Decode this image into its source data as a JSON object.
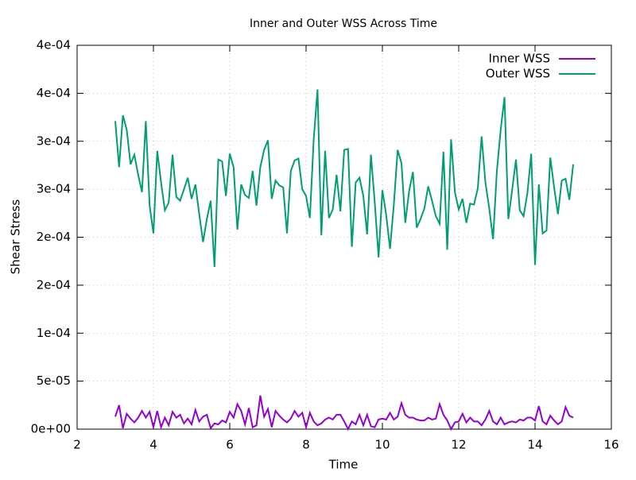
{
  "chart_data": {
    "type": "line",
    "title": "Inner and Outer WSS Across Time",
    "xlabel": "Time",
    "ylabel": "Shear Stress",
    "x": [
      3,
      3.1,
      3.2,
      3.3,
      3.4,
      3.5,
      3.6,
      3.7,
      3.8,
      3.9,
      4,
      4.1,
      4.2,
      4.3,
      4.4,
      4.5,
      4.6,
      4.7,
      4.8,
      4.9,
      5,
      5.1,
      5.2,
      5.3,
      5.4,
      5.5,
      5.6,
      5.7,
      5.8,
      5.9,
      6,
      6.1,
      6.2,
      6.3,
      6.4,
      6.5,
      6.6,
      6.7,
      6.8,
      6.9,
      7,
      7.1,
      7.2,
      7.3,
      7.4,
      7.5,
      7.6,
      7.7,
      7.8,
      7.9,
      8,
      8.1,
      8.2,
      8.3,
      8.4,
      8.5,
      8.6,
      8.7,
      8.8,
      8.9,
      9,
      9.1,
      9.2,
      9.3,
      9.4,
      9.5,
      9.6,
      9.7,
      9.8,
      9.9,
      10,
      10.1,
      10.2,
      10.3,
      10.4,
      10.5,
      10.6,
      10.7,
      10.8,
      10.9,
      11,
      11.1,
      11.2,
      11.3,
      11.4,
      11.5,
      11.6,
      11.7,
      11.8,
      11.9,
      12,
      12.1,
      12.2,
      12.3,
      12.4,
      12.5,
      12.6,
      12.7,
      12.8,
      12.9,
      13,
      13.1,
      13.2,
      13.3,
      13.4,
      13.5,
      13.6,
      13.7,
      13.8,
      13.9,
      14,
      14.1,
      14.2,
      14.3,
      14.4,
      14.5,
      14.6,
      14.7,
      14.8,
      14.9,
      15
    ],
    "series": [
      {
        "name": "Inner WSS",
        "color": "#9400d3",
        "values": [
          1.3e-05,
          2.5e-05,
          1e-06,
          1.6e-05,
          1.1e-05,
          7e-06,
          1.2e-05,
          1.9e-05,
          1.2e-05,
          1.8e-05,
          2e-06,
          1.9e-05,
          2e-06,
          1.2e-05,
          4e-06,
          1.8e-05,
          1.2e-05,
          1.5e-05,
          6e-06,
          1.1e-05,
          5e-06,
          2e-05,
          8e-06,
          1.3e-05,
          1.5e-05,
          1e-06,
          6e-06,
          5e-06,
          9e-06,
          7e-06,
          1.8e-05,
          1.2e-05,
          2.6e-05,
          1.9e-05,
          5e-06,
          2.2e-05,
          2e-06,
          4e-06,
          3.5e-05,
          1.3e-05,
          2.1e-05,
          2e-06,
          1.9e-05,
          1.4e-05,
          1e-05,
          7e-06,
          1.1e-05,
          1.9e-05,
          1.3e-05,
          1.7e-05,
          2e-06,
          1.7e-05,
          8e-06,
          4e-06,
          6e-06,
          1e-05,
          1.2e-05,
          1e-05,
          1.5e-05,
          1.5e-05,
          8e-06,
          0,
          8e-06,
          5e-06,
          1.5e-05,
          4e-06,
          1.5e-05,
          3e-06,
          2e-06,
          1e-05,
          1.1e-05,
          1e-05,
          1.7e-05,
          1e-05,
          1.3e-05,
          2.7e-05,
          1.5e-05,
          1.2e-05,
          1.2e-05,
          1e-05,
          9e-06,
          9e-06,
          1.2e-05,
          1e-05,
          1.1e-05,
          2.6e-05,
          1.5e-05,
          9e-06,
          0,
          7e-06,
          8e-06,
          1.6e-05,
          7e-06,
          1.2e-05,
          8e-06,
          8e-06,
          4e-06,
          1e-05,
          1.9e-05,
          8e-06,
          5e-06,
          1.2e-05,
          5e-06,
          7e-06,
          8e-06,
          7e-06,
          1e-05,
          9e-06,
          1.2e-05,
          1.2e-05,
          9e-06,
          2.4e-05,
          8e-06,
          5e-06,
          1.4e-05,
          9e-06,
          5e-06,
          8e-06,
          2.3e-05,
          1.4e-05,
          1.2e-05
        ]
      },
      {
        "name": "Outer WSS",
        "color": "#009e73",
        "values": [
          0.000321,
          0.000273,
          0.000327,
          0.000312,
          0.000276,
          0.000286,
          0.000265,
          0.000247,
          0.000321,
          0.000233,
          0.000204,
          0.00029,
          0.000257,
          0.000228,
          0.000236,
          0.000286,
          0.000242,
          0.000238,
          0.00025,
          0.000262,
          0.00024,
          0.000255,
          0.000224,
          0.000195,
          0.000219,
          0.000238,
          0.000169,
          0.000281,
          0.000279,
          0.000243,
          0.000287,
          0.000273,
          0.000208,
          0.000255,
          0.000244,
          0.000241,
          0.000269,
          0.000233,
          0.000273,
          0.000291,
          0.000301,
          0.00024,
          0.000259,
          0.000254,
          0.000252,
          0.000204,
          0.000269,
          0.00028,
          0.000282,
          0.00025,
          0.000243,
          0.00022,
          0.000302,
          0.000354,
          0.000202,
          0.00029,
          0.00022,
          0.000229,
          0.000265,
          0.000227,
          0.000291,
          0.000292,
          0.00019,
          0.000257,
          0.000262,
          0.000243,
          0.000203,
          0.000286,
          0.000236,
          0.000179,
          0.000249,
          0.000223,
          0.000188,
          0.000234,
          0.000291,
          0.000277,
          0.000215,
          0.000248,
          0.000268,
          0.00021,
          0.000219,
          0.00023,
          0.000253,
          0.000238,
          0.000222,
          0.000214,
          0.000289,
          0.000187,
          0.000302,
          0.000247,
          0.000229,
          0.00024,
          0.000215,
          0.000235,
          0.000234,
          0.000251,
          0.000305,
          0.000257,
          0.00023,
          0.000198,
          0.000269,
          0.000312,
          0.000346,
          0.000219,
          0.000249,
          0.000281,
          0.000228,
          0.000222,
          0.000246,
          0.000287,
          0.000171,
          0.000255,
          0.000204,
          0.000207,
          0.000283,
          0.000252,
          0.000224,
          0.000259,
          0.000261,
          0.000239,
          0.000276
        ]
      }
    ],
    "xlim": [
      2,
      16
    ],
    "xticks": [
      2,
      4,
      6,
      8,
      10,
      12,
      14,
      16
    ],
    "ylim": [
      0,
      0.0004
    ],
    "yticks": [
      {
        "value": 0,
        "label": "0e+00"
      },
      {
        "value": 5e-05,
        "label": "5e-05"
      },
      {
        "value": 0.0001,
        "label": "1e-04"
      },
      {
        "value": 0.00015,
        "label": "2e-04"
      },
      {
        "value": 0.0002,
        "label": "2e-04"
      },
      {
        "value": 0.00025,
        "label": "3e-04"
      },
      {
        "value": 0.0003,
        "label": "3e-04"
      },
      {
        "value": 0.00035,
        "label": "4e-04"
      },
      {
        "value": 0.0004,
        "label": "4e-04"
      }
    ],
    "grid": true,
    "legend": "top-right"
  }
}
